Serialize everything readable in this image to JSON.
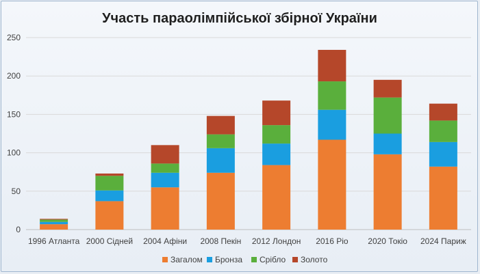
{
  "chart_data": {
    "type": "bar",
    "stacked": true,
    "title": "Участь параолімпійської збірної України",
    "xlabel": "",
    "ylabel": "",
    "categories": [
      "1996 Атланта",
      "2000 Сідней",
      "2004 Афіни",
      "2008 Пекін",
      "2012 Лондон",
      "2016 Ріо",
      "2020 Токіо",
      "2024 Париж"
    ],
    "ylim": [
      0,
      250
    ],
    "yticks": [
      0,
      50,
      100,
      150,
      200,
      250
    ],
    "grid": true,
    "legend_position": "bottom",
    "series": [
      {
        "name": "Загалом",
        "color": "#ed7d31",
        "values": [
          7,
          37,
          55,
          74,
          84,
          117,
          98,
          82
        ]
      },
      {
        "name": "Бронза",
        "color": "#1a9ee0",
        "values": [
          3,
          14,
          19,
          32,
          28,
          39,
          27,
          32
        ]
      },
      {
        "name": "Срібло",
        "color": "#5aaf3c",
        "values": [
          3,
          19,
          12,
          18,
          24,
          37,
          47,
          28
        ]
      },
      {
        "name": "Золото",
        "color": "#b5472a",
        "values": [
          1,
          3,
          24,
          24,
          32,
          41,
          23,
          22
        ]
      }
    ]
  }
}
